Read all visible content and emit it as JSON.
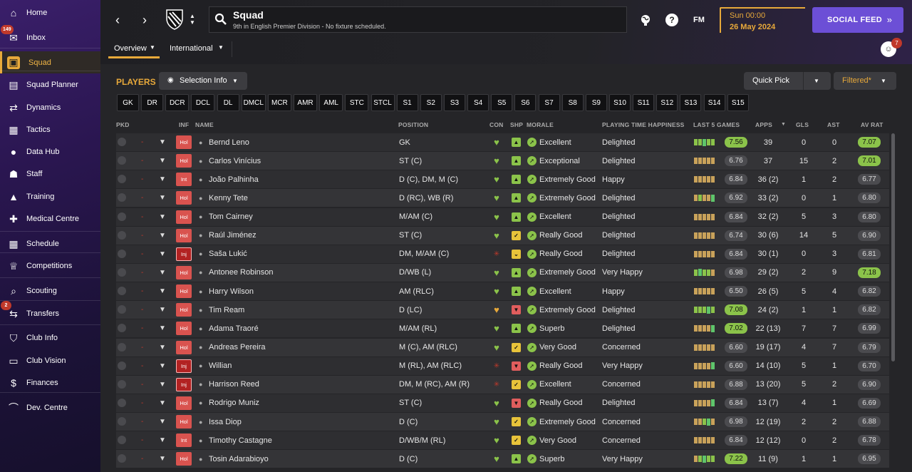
{
  "sidebar": {
    "items": [
      {
        "label": "Home",
        "icon": "home-icon",
        "glyph": "⌂"
      },
      {
        "label": "Inbox",
        "icon": "inbox-icon",
        "glyph": "✉",
        "badge": "149"
      },
      {
        "label": "Squad",
        "icon": "squad-shirt-icon",
        "glyph": "▣"
      },
      {
        "label": "Squad Planner",
        "icon": "clipboard-icon",
        "glyph": "▤"
      },
      {
        "label": "Dynamics",
        "icon": "dynamics-icon",
        "glyph": "⇄"
      },
      {
        "label": "Tactics",
        "icon": "tactics-board-icon",
        "glyph": "▦"
      },
      {
        "label": "Data Hub",
        "icon": "data-hub-icon",
        "glyph": "●"
      },
      {
        "label": "Staff",
        "icon": "staff-icon",
        "glyph": "☗"
      },
      {
        "label": "Training",
        "icon": "training-cone-icon",
        "glyph": "▲"
      },
      {
        "label": "Medical Centre",
        "icon": "medical-kit-icon",
        "glyph": "✚"
      },
      {
        "label": "Schedule",
        "icon": "calendar-icon",
        "glyph": "▦"
      },
      {
        "label": "Competitions",
        "icon": "trophy-icon",
        "glyph": "♕"
      },
      {
        "label": "Scouting",
        "icon": "magnifier-icon",
        "glyph": "⌕"
      },
      {
        "label": "Transfers",
        "icon": "transfers-icon",
        "glyph": "⇆",
        "badge": "2"
      },
      {
        "label": "Club Info",
        "icon": "club-shield-icon",
        "glyph": "⛉"
      },
      {
        "label": "Club Vision",
        "icon": "briefcase-icon",
        "glyph": "▭"
      },
      {
        "label": "Finances",
        "icon": "money-icon",
        "glyph": "$"
      },
      {
        "label": "Dev. Centre",
        "icon": "dev-centre-icon",
        "glyph": "⌒"
      }
    ]
  },
  "header": {
    "title": "Squad",
    "subtitle": "9th in English Premier Division - No fixture scheduled.",
    "tabs": [
      "Overview",
      "International"
    ],
    "day_time": "Sun 00:00",
    "date": "26 May 2024",
    "social_feed": "SOCIAL FEED",
    "fm_label": "FM",
    "help": "?",
    "notif_badge": "7"
  },
  "toolbar": {
    "players_label": "PLAYERS",
    "selection_info": "Selection Info",
    "quick_pick": "Quick Pick",
    "filtered": "Filtered*"
  },
  "positions": [
    "GK",
    "DR",
    "DCR",
    "DCL",
    "DL",
    "DMCL",
    "MCR",
    "AMR",
    "AML",
    "STC",
    "STCL",
    "S1",
    "S2",
    "S3",
    "S4",
    "S5",
    "S6",
    "S7",
    "S8",
    "S9",
    "S10",
    "S11",
    "S12",
    "S13",
    "S14",
    "S15"
  ],
  "columns": {
    "pkd": "PKD",
    "inf": "INF",
    "name": "NAME",
    "position": "POSITION",
    "con": "CON",
    "ship": "SHP",
    "morale": "MORALE",
    "pth": "PLAYING TIME HAPPINESS",
    "last5": "LAST 5 GAMES",
    "apps": "APPS",
    "gls": "GLS",
    "ast": "AST",
    "avr": "AV RAT"
  },
  "players": [
    {
      "inf": "Hol",
      "name": "Bernd Leno",
      "position": "GK",
      "morale": "Excellent",
      "pth": "Delighted",
      "form": "g g gl g g",
      "rating": "7.56",
      "apps": "39",
      "gls": "0",
      "ast": "0",
      "avr": "7.07",
      "ship": "up",
      "con": "ok"
    },
    {
      "inf": "Hol",
      "name": "Carlos Vinícius",
      "position": "ST (C)",
      "morale": "Exceptional",
      "pth": "Delighted",
      "form": "n n n n n",
      "rating": "6.76",
      "apps": "37",
      "gls": "15",
      "ast": "2",
      "avr": "7.01",
      "ship": "up",
      "con": "ok"
    },
    {
      "inf": "Int",
      "name": "João Palhinha",
      "position": "D (C), DM, M (C)",
      "morale": "Extremely Good",
      "pth": "Happy",
      "form": "n n n n n",
      "rating": "6.84",
      "apps": "36 (2)",
      "gls": "1",
      "ast": "2",
      "avr": "6.77",
      "ship": "up",
      "con": "ok"
    },
    {
      "inf": "Hol",
      "name": "Kenny Tete",
      "position": "D (RC), WB (R)",
      "morale": "Extremely Good",
      "pth": "Delighted",
      "form": "n g n n gl",
      "rating": "6.92",
      "apps": "33 (2)",
      "gls": "0",
      "ast": "1",
      "avr": "6.80",
      "ship": "up",
      "con": "ok"
    },
    {
      "inf": "Hol",
      "name": "Tom Cairney",
      "position": "M/AM (C)",
      "morale": "Excellent",
      "pth": "Delighted",
      "form": "n n n n n",
      "rating": "6.84",
      "apps": "32 (2)",
      "gls": "5",
      "ast": "3",
      "avr": "6.80",
      "ship": "up",
      "con": "ok"
    },
    {
      "inf": "Hol",
      "name": "Raúl Jiménez",
      "position": "ST (C)",
      "morale": "Really Good",
      "pth": "Delighted",
      "form": "n n n n n",
      "rating": "6.74",
      "apps": "30 (6)",
      "gls": "14",
      "ast": "5",
      "avr": "6.90",
      "ship": "check",
      "con": "ok"
    },
    {
      "inf": "Inj",
      "name": "Saša Lukić",
      "position": "DM, M/AM (C)",
      "morale": "Really Good",
      "pth": "Delighted",
      "form": "n n n n n",
      "rating": "6.84",
      "apps": "30 (1)",
      "gls": "0",
      "ast": "3",
      "avr": "6.81",
      "ship": "down",
      "con": "inj"
    },
    {
      "inf": "Hol",
      "name": "Antonee Robinson",
      "position": "D/WB (L)",
      "morale": "Extremely Good",
      "pth": "Very Happy",
      "form": "g gl g g n",
      "rating": "6.98",
      "apps": "29 (2)",
      "gls": "2",
      "ast": "9",
      "avr": "7.18",
      "ship": "up",
      "con": "ok"
    },
    {
      "inf": "Hol",
      "name": "Harry Wilson",
      "position": "AM (RLC)",
      "morale": "Excellent",
      "pth": "Happy",
      "form": "n n n n n",
      "rating": "6.50",
      "apps": "26 (5)",
      "gls": "5",
      "ast": "4",
      "avr": "6.82",
      "ship": "up",
      "con": "ok"
    },
    {
      "inf": "Hol",
      "name": "Tim Ream",
      "position": "D (LC)",
      "morale": "Extremely Good",
      "pth": "Delighted",
      "form": "g g g gl g",
      "rating": "7.08",
      "apps": "24 (2)",
      "gls": "1",
      "ast": "1",
      "avr": "6.82",
      "ship": "red",
      "con": "gold"
    },
    {
      "inf": "Hol",
      "name": "Adama Traoré",
      "position": "M/AM (RL)",
      "morale": "Superb",
      "pth": "Delighted",
      "form": "n n n n gl",
      "rating": "7.02",
      "apps": "22 (13)",
      "gls": "7",
      "ast": "7",
      "avr": "6.99",
      "ship": "up",
      "con": "ok"
    },
    {
      "inf": "Hol",
      "name": "Andreas Pereira",
      "position": "M (C), AM (RLC)",
      "morale": "Very Good",
      "pth": "Concerned",
      "form": "n n n n n",
      "rating": "6.60",
      "apps": "19 (17)",
      "gls": "4",
      "ast": "7",
      "avr": "6.79",
      "ship": "check",
      "con": "ok"
    },
    {
      "inf": "Inj",
      "name": "Willian",
      "position": "M (RL), AM (RLC)",
      "morale": "Really Good",
      "pth": "Very Happy",
      "form": "n n n n gl",
      "rating": "6.60",
      "apps": "14 (10)",
      "gls": "5",
      "ast": "1",
      "avr": "6.70",
      "ship": "red",
      "con": "inj"
    },
    {
      "inf": "Inj",
      "name": "Harrison Reed",
      "position": "DM, M (RC), AM (R)",
      "morale": "Excellent",
      "pth": "Concerned",
      "form": "n n n n n",
      "rating": "6.88",
      "apps": "13 (20)",
      "gls": "5",
      "ast": "2",
      "avr": "6.90",
      "ship": "check",
      "con": "inj"
    },
    {
      "inf": "Hol",
      "name": "Rodrigo Muniz",
      "position": "ST (C)",
      "morale": "Really Good",
      "pth": "Delighted",
      "form": "n n n n gl",
      "rating": "6.84",
      "apps": "13 (7)",
      "gls": "4",
      "ast": "1",
      "avr": "6.69",
      "ship": "red",
      "con": "ok"
    },
    {
      "inf": "Hol",
      "name": "Issa Diop",
      "position": "D (C)",
      "morale": "Extremely Good",
      "pth": "Concerned",
      "form": "n n g gl n",
      "rating": "6.98",
      "apps": "12 (19)",
      "gls": "2",
      "ast": "2",
      "avr": "6.88",
      "ship": "check",
      "con": "ok"
    },
    {
      "inf": "Int",
      "name": "Timothy Castagne",
      "position": "D/WB/M (RL)",
      "morale": "Very Good",
      "pth": "Concerned",
      "form": "n n n n n",
      "rating": "6.84",
      "apps": "12 (12)",
      "gls": "0",
      "ast": "2",
      "avr": "6.78",
      "ship": "check",
      "con": "ok"
    },
    {
      "inf": "Hol",
      "name": "Tosin Adarabioyo",
      "position": "D (C)",
      "morale": "Superb",
      "pth": "Very Happy",
      "form": "n g gl g g",
      "rating": "7.22",
      "apps": "11 (9)",
      "gls": "1",
      "ast": "1",
      "avr": "6.95",
      "ship": "up",
      "con": "ok"
    }
  ],
  "colors": {
    "accent": "#e8a93a",
    "social": "#6c4fd6",
    "good": "#8bc34a",
    "inj": "#c0392b"
  }
}
